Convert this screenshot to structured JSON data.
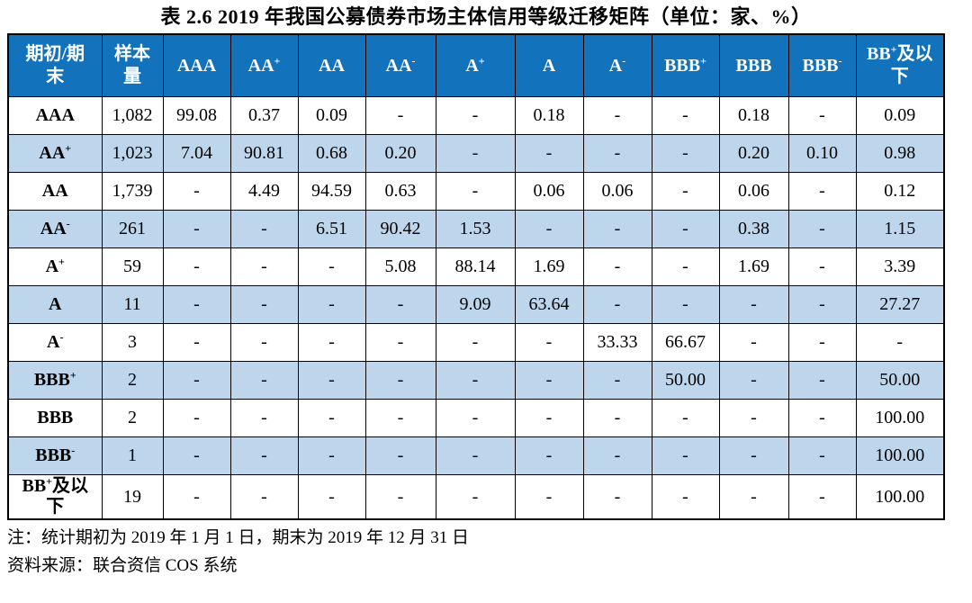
{
  "title": "表 2.6  2019 年我国公募债券市场主体信用等级迁移矩阵（单位：家、%）",
  "table": {
    "corner_header": "期初/期\n末",
    "sample_header": "样本\n量",
    "rating_headers": [
      "AAA",
      "AA+",
      "AA",
      "AA-",
      "A+",
      "A",
      "A-",
      "BBB+",
      "BBB",
      "BBB-",
      "BB+及以\n下"
    ],
    "rows": [
      {
        "label": "AAA",
        "sample": "1,082",
        "values": [
          "99.08",
          "0.37",
          "0.09",
          "-",
          "-",
          "0.18",
          "-",
          "-",
          "0.18",
          "-",
          "0.09"
        ]
      },
      {
        "label": "AA+",
        "sample": "1,023",
        "values": [
          "7.04",
          "90.81",
          "0.68",
          "0.20",
          "-",
          "-",
          "-",
          "-",
          "0.20",
          "0.10",
          "0.98"
        ]
      },
      {
        "label": "AA",
        "sample": "1,739",
        "values": [
          "-",
          "4.49",
          "94.59",
          "0.63",
          "-",
          "0.06",
          "0.06",
          "-",
          "0.06",
          "-",
          "0.12"
        ]
      },
      {
        "label": "AA-",
        "sample": "261",
        "values": [
          "-",
          "-",
          "6.51",
          "90.42",
          "1.53",
          "-",
          "-",
          "-",
          "0.38",
          "-",
          "1.15"
        ]
      },
      {
        "label": "A+",
        "sample": "59",
        "values": [
          "-",
          "-",
          "-",
          "5.08",
          "88.14",
          "1.69",
          "-",
          "-",
          "1.69",
          "-",
          "3.39"
        ]
      },
      {
        "label": "A",
        "sample": "11",
        "values": [
          "-",
          "-",
          "-",
          "-",
          "9.09",
          "63.64",
          "-",
          "-",
          "-",
          "-",
          "27.27"
        ]
      },
      {
        "label": "A-",
        "sample": "3",
        "values": [
          "-",
          "-",
          "-",
          "-",
          "-",
          "-",
          "33.33",
          "66.67",
          "-",
          "-",
          "-"
        ]
      },
      {
        "label": "BBB+",
        "sample": "2",
        "values": [
          "-",
          "-",
          "-",
          "-",
          "-",
          "-",
          "-",
          "50.00",
          "-",
          "-",
          "50.00"
        ]
      },
      {
        "label": "BBB",
        "sample": "2",
        "values": [
          "-",
          "-",
          "-",
          "-",
          "-",
          "-",
          "-",
          "-",
          "-",
          "-",
          "100.00"
        ]
      },
      {
        "label": "BBB-",
        "sample": "1",
        "values": [
          "-",
          "-",
          "-",
          "-",
          "-",
          "-",
          "-",
          "-",
          "-",
          "-",
          "100.00"
        ]
      },
      {
        "label": "BB+及以\n下",
        "sample": "19",
        "values": [
          "-",
          "-",
          "-",
          "-",
          "-",
          "-",
          "-",
          "-",
          "-",
          "-",
          "100.00"
        ]
      }
    ]
  },
  "notes": {
    "note": "注：统计期初为 2019 年 1 月 1 日，期末为 2019 年 12 月 31 日",
    "source": "资料来源：联合资信 COS 系统"
  },
  "colors": {
    "header_bg": "#1272BC",
    "header_text": "#FFFFFF",
    "stripe_bg": "#BDD6EC",
    "border": "#000000"
  }
}
